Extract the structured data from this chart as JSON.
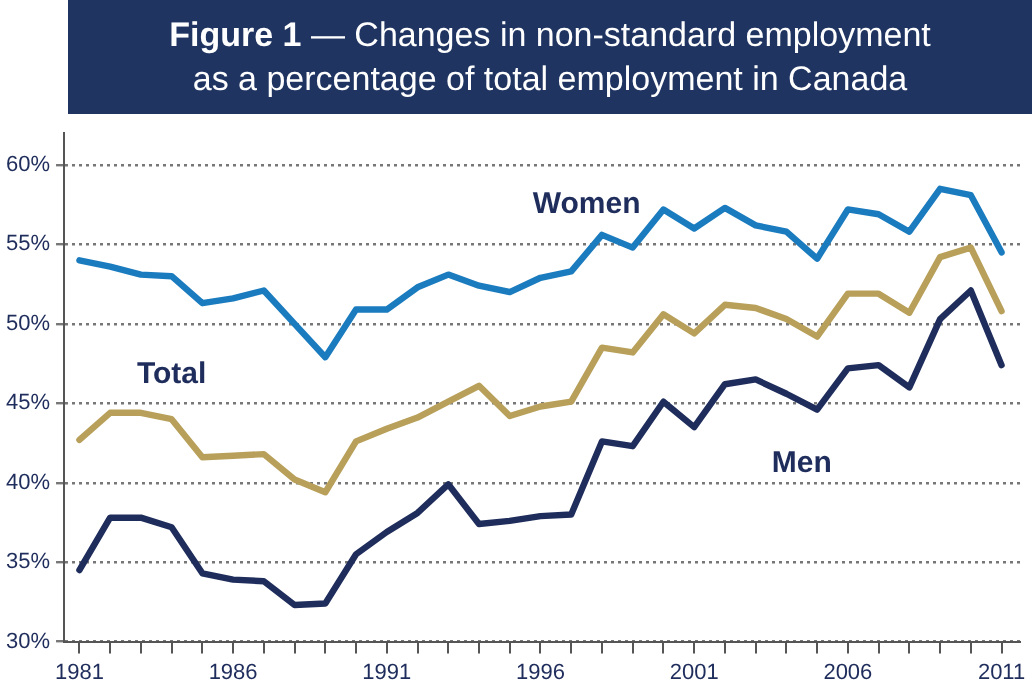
{
  "chart_data": {
    "type": "line",
    "title": "Figure 1 — Changes in non-standard employment",
    "subtitle": "as a percentage of total employment in Canada",
    "x": [
      1981,
      1982,
      1983,
      1984,
      1985,
      1986,
      1987,
      1988,
      1989,
      1990,
      1991,
      1992,
      1993,
      1994,
      1995,
      1996,
      1997,
      1998,
      1999,
      2000,
      2001,
      2002,
      2003,
      2004,
      2005,
      2006,
      2007,
      2008,
      2009,
      2010,
      2011
    ],
    "series": [
      {
        "name": "Women",
        "color": "#1a7bbf",
        "values": [
          54.0,
          53.6,
          53.1,
          53.0,
          51.3,
          51.6,
          52.1,
          50.0,
          47.9,
          50.9,
          50.9,
          52.3,
          53.1,
          52.4,
          52.0,
          52.9,
          53.3,
          55.6,
          54.8,
          57.2,
          56.0,
          57.3,
          56.2,
          55.8,
          54.1,
          57.2,
          56.9,
          55.8,
          58.5,
          58.1,
          54.5
        ]
      },
      {
        "name": "Total",
        "color": "#b8a05a",
        "values": [
          42.7,
          44.4,
          44.4,
          44.0,
          41.6,
          41.7,
          41.8,
          40.2,
          39.4,
          42.6,
          43.4,
          44.1,
          45.1,
          46.1,
          44.2,
          44.8,
          45.1,
          48.5,
          48.2,
          50.6,
          49.4,
          51.2,
          51.0,
          50.3,
          49.2,
          51.9,
          51.9,
          50.7,
          54.2,
          54.8,
          50.8
        ]
      },
      {
        "name": "Men",
        "color": "#1f2d5c",
        "values": [
          34.5,
          37.8,
          37.8,
          37.2,
          34.3,
          33.9,
          33.8,
          32.3,
          32.4,
          35.5,
          36.9,
          38.1,
          39.9,
          37.4,
          37.6,
          37.9,
          38.0,
          42.6,
          42.3,
          45.1,
          43.5,
          46.2,
          46.5,
          45.6,
          44.6,
          47.2,
          47.4,
          46.0,
          50.3,
          52.1,
          47.4
        ]
      }
    ],
    "xlim": [
      1980.5,
      2011.6
    ],
    "xticks": [
      1981,
      {
        "value": 1982,
        "label": null
      },
      {
        "value": 1983,
        "label": null
      },
      {
        "value": 1984,
        "label": null
      },
      {
        "value": 1985,
        "label": null
      },
      1986,
      {
        "value": 1987,
        "label": null
      },
      {
        "value": 1988,
        "label": null
      },
      {
        "value": 1989,
        "label": null
      },
      {
        "value": 1990,
        "label": null
      },
      1991,
      {
        "value": 1992,
        "label": null
      },
      {
        "value": 1993,
        "label": null
      },
      {
        "value": 1994,
        "label": null
      },
      {
        "value": 1995,
        "label": null
      },
      1996,
      {
        "value": 1997,
        "label": null
      },
      {
        "value": 1998,
        "label": null
      },
      {
        "value": 1999,
        "label": null
      },
      {
        "value": 2000,
        "label": null
      },
      2001,
      {
        "value": 2002,
        "label": null
      },
      {
        "value": 2003,
        "label": null
      },
      {
        "value": 2004,
        "label": null
      },
      {
        "value": 2005,
        "label": null
      },
      2006,
      {
        "value": 2007,
        "label": null
      },
      {
        "value": 2008,
        "label": null
      },
      {
        "value": 2009,
        "label": null
      },
      {
        "value": 2010,
        "label": null
      },
      2011
    ],
    "ylim": [
      30,
      62
    ],
    "yticks": [
      {
        "value": 30,
        "label": "30%"
      },
      {
        "value": 35,
        "label": "35%"
      },
      {
        "value": 40,
        "label": "40%"
      },
      {
        "value": 45,
        "label": "45%"
      },
      {
        "value": 50,
        "label": "50%"
      },
      {
        "value": 55,
        "label": "55%"
      },
      {
        "value": 60,
        "label": "60%"
      }
    ],
    "grid": "y",
    "legend": false,
    "marker": "none",
    "line_style": "solid"
  }
}
